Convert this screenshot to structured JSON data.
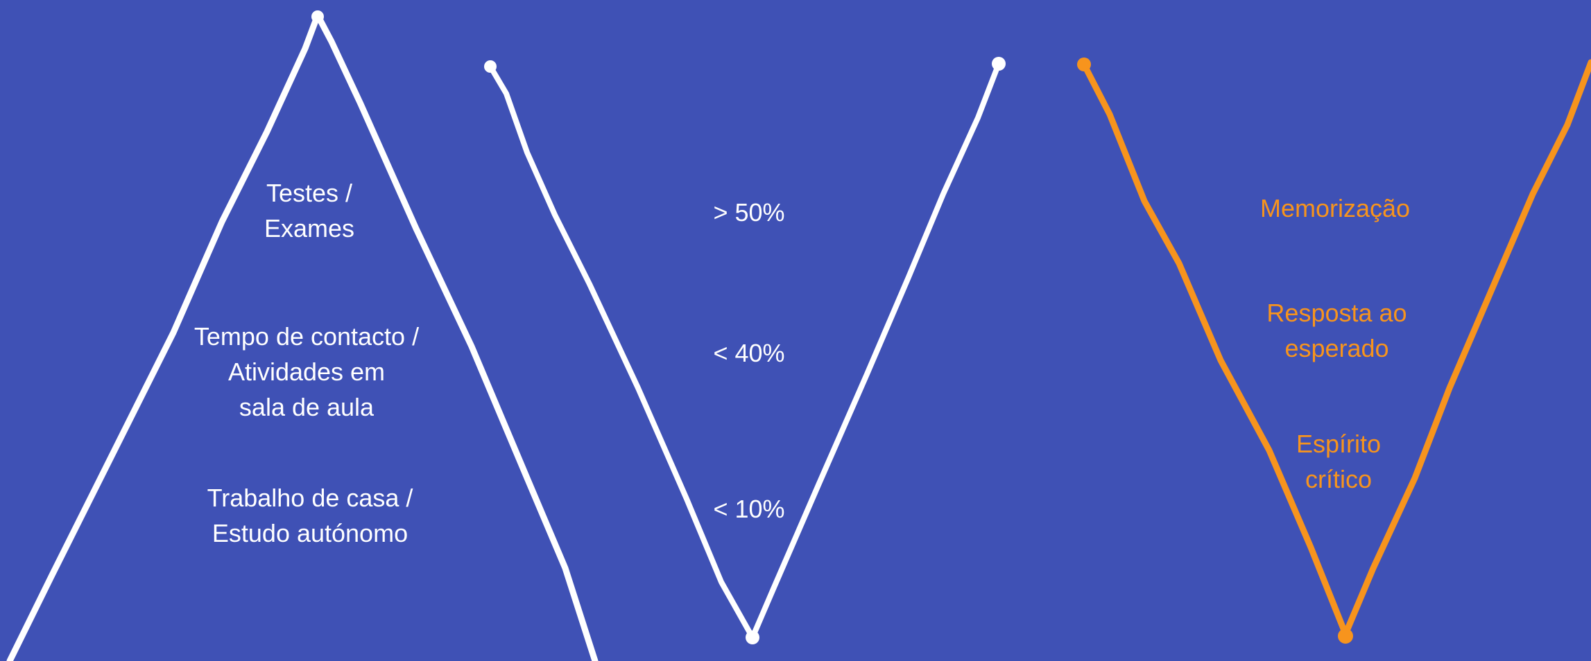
{
  "colors": {
    "background": "#3f51b5",
    "stroke_primary": "#ffffff",
    "stroke_accent": "#f7941d",
    "text_primary": "#ffffff",
    "text_accent": "#f7941d"
  },
  "pyramid": {
    "levels": [
      "Testes /\nExames",
      "Tempo de contacto /\nAtividades em\nsala de aula",
      "Trabalho de casa /\nEstudo autónomo"
    ]
  },
  "percentages": {
    "levels": [
      "> 50%",
      "< 40%",
      "< 10%"
    ]
  },
  "skills": {
    "levels": [
      "Memorização",
      "Resposta ao\nesperado",
      "Espírito\ncrítico"
    ]
  }
}
